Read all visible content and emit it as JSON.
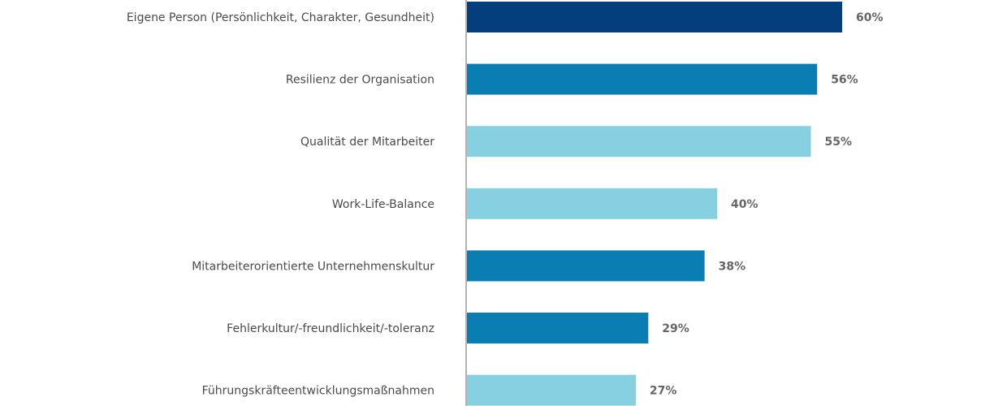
{
  "chart_data": {
    "type": "bar",
    "orientation": "horizontal",
    "categories": [
      "Eigene Person (Persönlichkeit, Charakter, Gesundheit)",
      "Resilienz der Organisation",
      "Qualität der Mitarbeiter",
      "Work-Life-Balance",
      "Mitarbeiterorientierte Unternehmenskultur",
      "Fehlerkultur/-freundlichkeit/-toleranz",
      "Führungskräfteentwicklungsmaßnahmen"
    ],
    "values": [
      60,
      56,
      55,
      40,
      38,
      29,
      27
    ],
    "value_labels": [
      "60%",
      "56%",
      "55%",
      "40%",
      "38%",
      "29%",
      "27%"
    ],
    "bar_colors": [
      "#053e7c",
      "#0a7db3",
      "#87d0e2",
      "#87d0e2",
      "#0a7db3",
      "#0a7db3",
      "#87d0e2"
    ],
    "unit": "%",
    "xlim": [
      0,
      100
    ],
    "grid": false,
    "title": "",
    "xlabel": "",
    "ylabel": ""
  }
}
